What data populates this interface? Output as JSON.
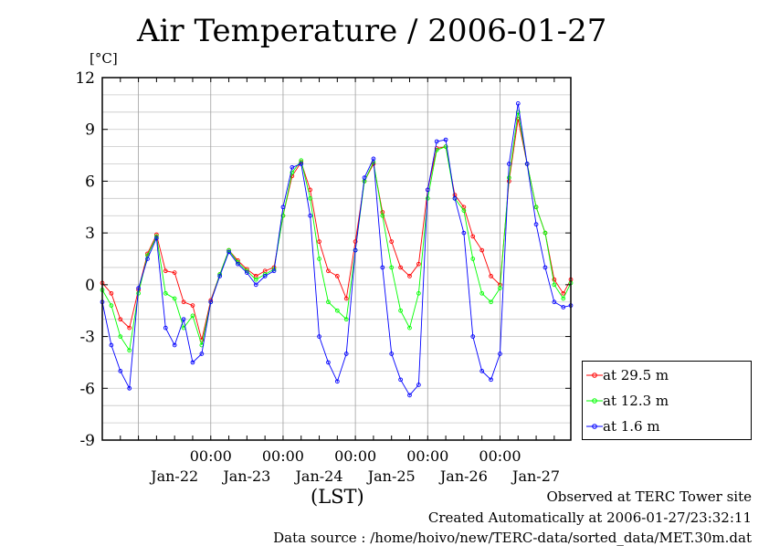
{
  "chart_data": {
    "type": "line",
    "title": "Air Temperature / 2006-01-27",
    "ylabel": "[°C]",
    "xlabel": "(LST)",
    "ylim": [
      -9,
      12
    ],
    "yticks": [
      "12",
      "9",
      "6",
      "3",
      "0",
      "-3",
      "-6",
      "-9"
    ],
    "xlim": [
      "2006-01-21T12:00",
      "2006-01-27T23:30"
    ],
    "time_labels": [
      "00:00",
      "00:00",
      "00:00",
      "00:00",
      "00:00"
    ],
    "date_labels": [
      "Jan-22",
      "Jan-23",
      "Jan-24",
      "Jan-25",
      "Jan-26",
      "Jan-27"
    ],
    "grid": true,
    "legend_position": "right, below plot",
    "colors": {
      "29.5": "#ff0000",
      "12.3": "#00ff00",
      "1.6": "#0000ff"
    },
    "series": [
      {
        "name": "at 29.5 m",
        "x": [
          "2006-01-21T12:00",
          "2006-01-21T15:00",
          "2006-01-21T18:00",
          "2006-01-21T21:00",
          "2006-01-22T00:00",
          "2006-01-22T03:00",
          "2006-01-22T06:00",
          "2006-01-22T09:00",
          "2006-01-22T12:00",
          "2006-01-22T15:00",
          "2006-01-22T18:00",
          "2006-01-22T21:00",
          "2006-01-23T00:00",
          "2006-01-23T03:00",
          "2006-01-23T06:00",
          "2006-01-23T09:00",
          "2006-01-23T12:00",
          "2006-01-23T15:00",
          "2006-01-23T18:00",
          "2006-01-23T21:00",
          "2006-01-24T00:00",
          "2006-01-24T03:00",
          "2006-01-24T06:00",
          "2006-01-24T09:00",
          "2006-01-24T12:00",
          "2006-01-24T15:00",
          "2006-01-24T18:00",
          "2006-01-24T21:00",
          "2006-01-25T00:00",
          "2006-01-25T03:00",
          "2006-01-25T06:00",
          "2006-01-25T09:00",
          "2006-01-25T12:00",
          "2006-01-25T15:00",
          "2006-01-25T18:00",
          "2006-01-25T21:00",
          "2006-01-26T00:00",
          "2006-01-26T03:00",
          "2006-01-26T06:00",
          "2006-01-26T09:00",
          "2006-01-26T12:00",
          "2006-01-26T15:00",
          "2006-01-26T18:00",
          "2006-01-26T21:00",
          "2006-01-27T00:00",
          "2006-01-27T03:00",
          "2006-01-27T06:00",
          "2006-01-27T09:00",
          "2006-01-27T12:00",
          "2006-01-27T15:00",
          "2006-01-27T18:00",
          "2006-01-27T21:00",
          "2006-01-27T23:30"
        ],
        "values": [
          0.1,
          -0.5,
          -2.0,
          -2.5,
          -0.3,
          1.8,
          2.9,
          0.8,
          0.7,
          -1.0,
          -1.2,
          -3.2,
          -0.9,
          0.6,
          2.0,
          1.4,
          0.9,
          0.5,
          0.8,
          1.0,
          4.0,
          6.3,
          7.1,
          5.5,
          2.5,
          0.8,
          0.5,
          -0.8,
          2.5,
          6.0,
          7.0,
          4.2,
          2.5,
          1.0,
          0.5,
          1.2,
          5.5,
          7.9,
          8.0,
          5.2,
          4.5,
          2.8,
          2.0,
          0.5,
          0.0,
          6.0,
          9.6,
          7.0,
          4.5,
          3.0,
          0.3,
          -0.5,
          0.3
        ]
      },
      {
        "name": "at 12.3 m",
        "x": [
          "2006-01-21T12:00",
          "2006-01-21T15:00",
          "2006-01-21T18:00",
          "2006-01-21T21:00",
          "2006-01-22T00:00",
          "2006-01-22T03:00",
          "2006-01-22T06:00",
          "2006-01-22T09:00",
          "2006-01-22T12:00",
          "2006-01-22T15:00",
          "2006-01-22T18:00",
          "2006-01-22T21:00",
          "2006-01-23T00:00",
          "2006-01-23T03:00",
          "2006-01-23T06:00",
          "2006-01-23T09:00",
          "2006-01-23T12:00",
          "2006-01-23T15:00",
          "2006-01-23T18:00",
          "2006-01-23T21:00",
          "2006-01-24T00:00",
          "2006-01-24T03:00",
          "2006-01-24T06:00",
          "2006-01-24T09:00",
          "2006-01-24T12:00",
          "2006-01-24T15:00",
          "2006-01-24T18:00",
          "2006-01-24T21:00",
          "2006-01-25T00:00",
          "2006-01-25T03:00",
          "2006-01-25T06:00",
          "2006-01-25T09:00",
          "2006-01-25T12:00",
          "2006-01-25T15:00",
          "2006-01-25T18:00",
          "2006-01-25T21:00",
          "2006-01-26T00:00",
          "2006-01-26T03:00",
          "2006-01-26T06:00",
          "2006-01-26T09:00",
          "2006-01-26T12:00",
          "2006-01-26T15:00",
          "2006-01-26T18:00",
          "2006-01-26T21:00",
          "2006-01-27T00:00",
          "2006-01-27T03:00",
          "2006-01-27T06:00",
          "2006-01-27T09:00",
          "2006-01-27T12:00",
          "2006-01-27T15:00",
          "2006-01-27T18:00",
          "2006-01-27T21:00",
          "2006-01-27T23:30"
        ],
        "values": [
          -0.3,
          -1.2,
          -3.0,
          -3.8,
          -0.5,
          1.7,
          2.8,
          -0.5,
          -0.8,
          -2.5,
          -1.8,
          -3.5,
          -1.0,
          0.6,
          2.0,
          1.3,
          0.8,
          0.3,
          0.6,
          0.9,
          4.0,
          6.5,
          7.2,
          5.0,
          1.5,
          -1.0,
          -1.5,
          -2.0,
          2.0,
          6.0,
          7.1,
          4.0,
          1.0,
          -1.5,
          -2.5,
          -0.5,
          5.0,
          7.8,
          8.0,
          5.0,
          4.3,
          1.5,
          -0.5,
          -1.0,
          -0.2,
          6.2,
          10.0,
          7.0,
          4.5,
          3.0,
          0.0,
          -0.8,
          0.1
        ]
      },
      {
        "name": "at 1.6 m",
        "x": [
          "2006-01-21T12:00",
          "2006-01-21T15:00",
          "2006-01-21T18:00",
          "2006-01-21T21:00",
          "2006-01-22T00:00",
          "2006-01-22T03:00",
          "2006-01-22T06:00",
          "2006-01-22T09:00",
          "2006-01-22T12:00",
          "2006-01-22T15:00",
          "2006-01-22T18:00",
          "2006-01-22T21:00",
          "2006-01-23T00:00",
          "2006-01-23T03:00",
          "2006-01-23T06:00",
          "2006-01-23T09:00",
          "2006-01-23T12:00",
          "2006-01-23T15:00",
          "2006-01-23T18:00",
          "2006-01-23T21:00",
          "2006-01-24T00:00",
          "2006-01-24T03:00",
          "2006-01-24T06:00",
          "2006-01-24T09:00",
          "2006-01-24T12:00",
          "2006-01-24T15:00",
          "2006-01-24T18:00",
          "2006-01-24T21:00",
          "2006-01-25T00:00",
          "2006-01-25T03:00",
          "2006-01-25T06:00",
          "2006-01-25T09:00",
          "2006-01-25T12:00",
          "2006-01-25T15:00",
          "2006-01-25T18:00",
          "2006-01-25T21:00",
          "2006-01-26T00:00",
          "2006-01-26T03:00",
          "2006-01-26T06:00",
          "2006-01-26T09:00",
          "2006-01-26T12:00",
          "2006-01-26T15:00",
          "2006-01-26T18:00",
          "2006-01-26T21:00",
          "2006-01-27T00:00",
          "2006-01-27T03:00",
          "2006-01-27T06:00",
          "2006-01-27T09:00",
          "2006-01-27T12:00",
          "2006-01-27T15:00",
          "2006-01-27T18:00",
          "2006-01-27T21:00",
          "2006-01-27T23:30"
        ],
        "values": [
          -1.0,
          -3.5,
          -5.0,
          -6.0,
          -0.2,
          1.5,
          2.7,
          -2.5,
          -3.5,
          -2.0,
          -4.5,
          -4.0,
          -1.0,
          0.5,
          1.9,
          1.2,
          0.7,
          0.0,
          0.5,
          0.8,
          4.5,
          6.8,
          7.0,
          4.0,
          -3.0,
          -4.5,
          -5.6,
          -4.0,
          2.0,
          6.2,
          7.3,
          1.0,
          -4.0,
          -5.5,
          -6.4,
          -5.8,
          5.5,
          8.3,
          8.4,
          5.0,
          3.0,
          -3.0,
          -5.0,
          -5.5,
          -4.0,
          7.0,
          10.5,
          7.0,
          3.5,
          1.0,
          -1.0,
          -1.3,
          -1.2
        ]
      }
    ]
  },
  "legend": [
    {
      "label": "at 29.5 m",
      "color": "#ff0000"
    },
    {
      "label": "at 12.3 m",
      "color": "#00ff00"
    },
    {
      "label": "at 1.6 m",
      "color": "#0000ff"
    }
  ],
  "footer": {
    "line1": "Observed at TERC Tower site",
    "line2": "Created Automatically at 2006-01-27/23:32:11",
    "line3": "Data source : /home/hoivo/new/TERC-data/sorted_data/MET.30m.dat"
  }
}
